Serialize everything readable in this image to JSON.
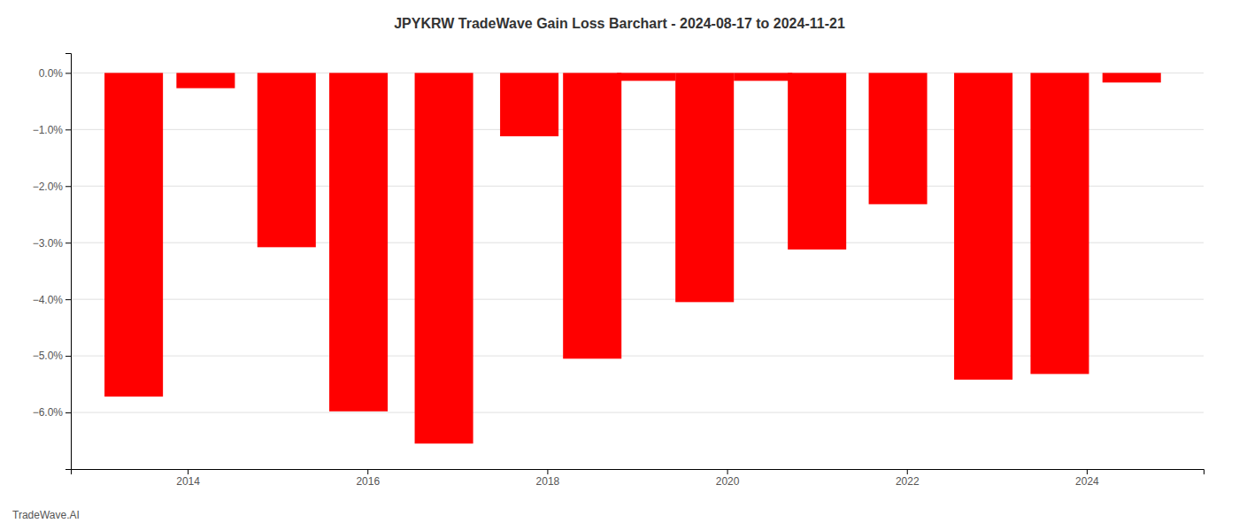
{
  "chart_data": {
    "type": "bar",
    "title": "JPYKRW TradeWave Gain Loss Barchart - 2024-08-17 to 2024-11-21",
    "annotations": [
      "TradeWave.AI"
    ],
    "x": [
      2013.4,
      2014.2,
      2015.1,
      2015.9,
      2016.85,
      2017.8,
      2018.5,
      2019.1,
      2019.75,
      2020.4,
      2021.0,
      2021.9,
      2022.85,
      2023.7,
      2024.5
    ],
    "values": [
      -5.72,
      -0.27,
      -3.08,
      -5.98,
      -6.55,
      -1.12,
      -5.05,
      -0.14,
      -4.05,
      -0.14,
      -3.12,
      -2.32,
      -5.42,
      -5.32,
      -0.17
    ],
    "color": "#ff0000",
    "xlim": [
      2012.7,
      2025.3
    ],
    "xticks": [
      2014,
      2016,
      2018,
      2020,
      2022,
      2024
    ],
    "ylim": [
      -7.0,
      0.35
    ],
    "yticks": [
      {
        "value": 0.0,
        "label": "0.0%"
      },
      {
        "value": -1.0,
        "label": "−1.0%"
      },
      {
        "value": -2.0,
        "label": "−2.0%"
      },
      {
        "value": -3.0,
        "label": "−3.0%"
      },
      {
        "value": -4.0,
        "label": "−4.0%"
      },
      {
        "value": -5.0,
        "label": "−5.0%"
      },
      {
        "value": -6.0,
        "label": "−6.0%"
      }
    ],
    "grid": true
  }
}
